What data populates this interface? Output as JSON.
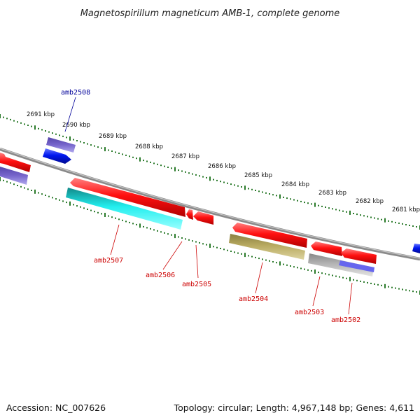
{
  "title": "Magnetospirillum magneticum AMB-1, complete genome",
  "footer": {
    "accession": "Accession: NC_007626",
    "topology": "Topology: circular; Length: 4,967,148 bp; Genes: 4,611"
  },
  "colors": {
    "backbone": "#8a8a8a",
    "tick": "#2b7a2b",
    "label_red": "#cc0000",
    "label_blue": "#000099",
    "red_gene": "#ff1a1a",
    "blue_gene": "#0022ee",
    "purple_gene": "#7766cc",
    "cyan_gene": "#22eeee",
    "olive_gene": "#b8aa60",
    "gray_gene": "#b4b4b4"
  },
  "kbp_labels": [
    "2691 kbp",
    "2690 kbp",
    "2689 kbp",
    "2688 kbp",
    "2687 kbp",
    "2686 kbp",
    "2685 kbp",
    "2684 kbp",
    "2683 kbp",
    "2682 kbp",
    "2681 kbp"
  ],
  "gene_labels": [
    {
      "text": "amb2508",
      "color": "blue"
    },
    {
      "text": "amb2507",
      "color": "red"
    },
    {
      "text": "amb2506",
      "color": "red"
    },
    {
      "text": "amb2505",
      "color": "red"
    },
    {
      "text": "amb2504",
      "color": "red"
    },
    {
      "text": "amb2503",
      "color": "red"
    },
    {
      "text": "amb2502",
      "color": "red"
    }
  ]
}
